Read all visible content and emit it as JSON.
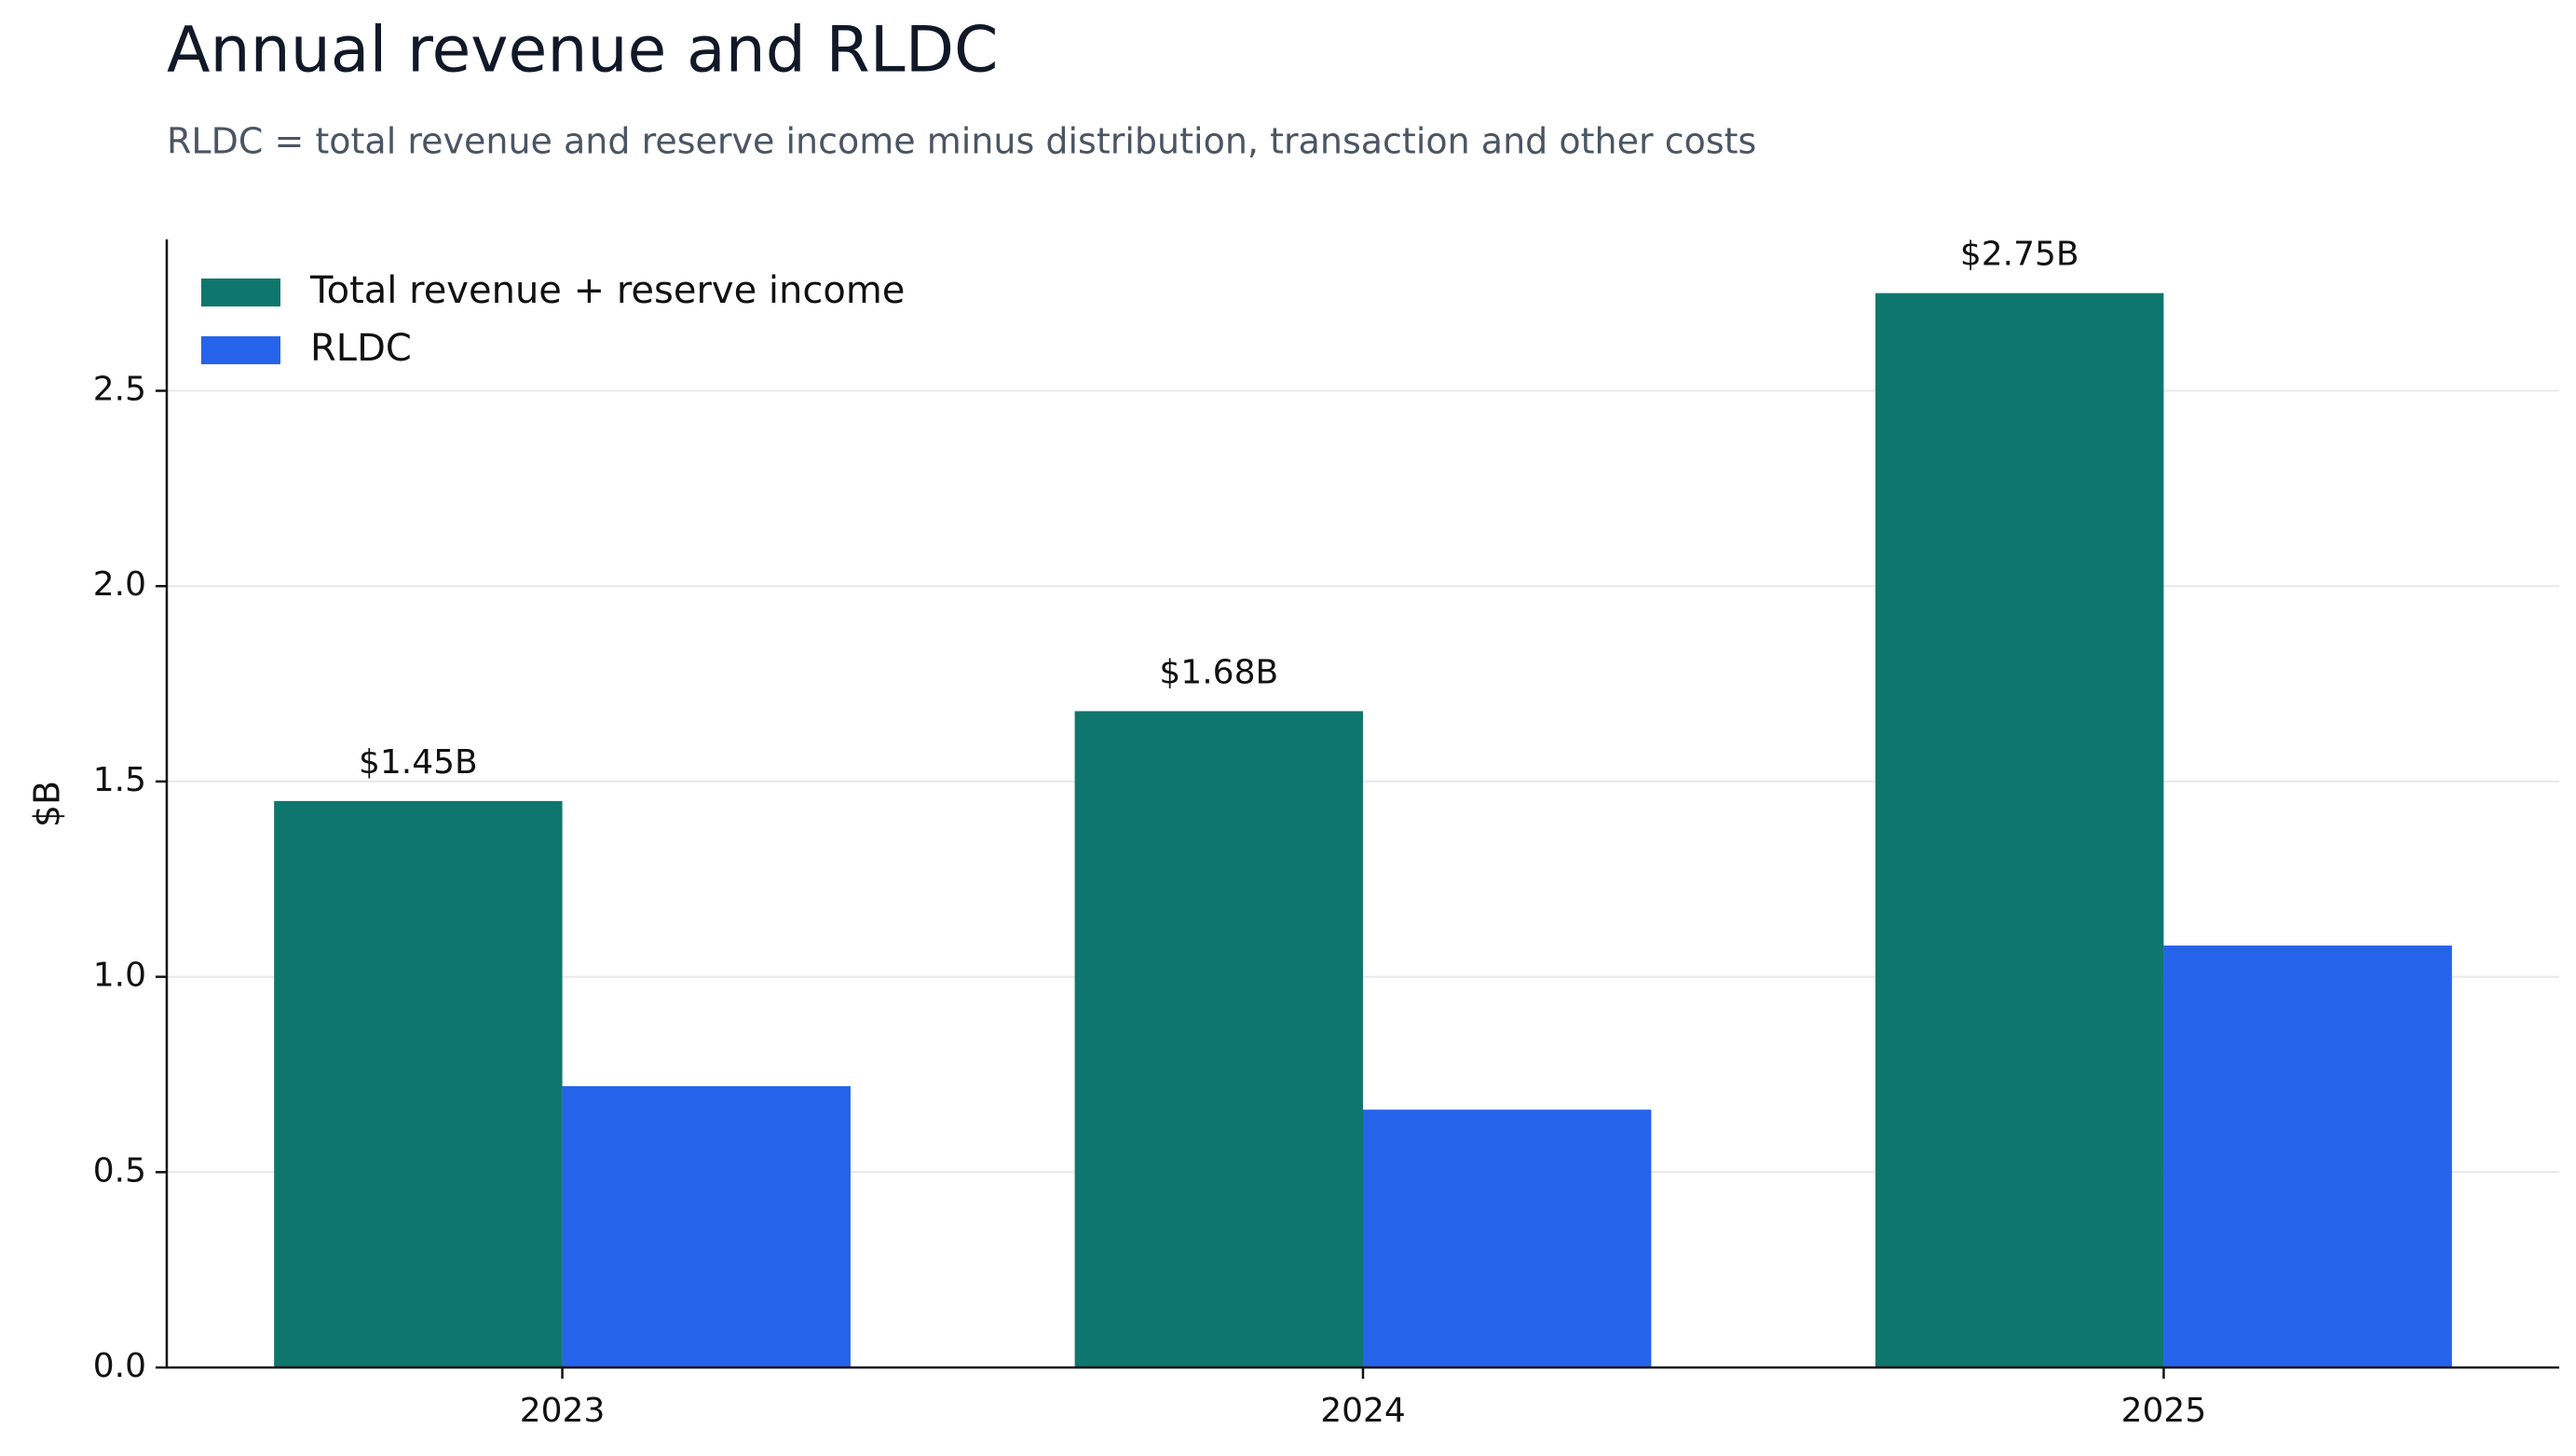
{
  "chart_data": {
    "type": "bar",
    "title": "Annual revenue and RLDC",
    "subtitle": "RLDC = total revenue and reserve income minus distribution, transaction and other costs",
    "y_label": "$B",
    "categories": [
      "2023",
      "2024",
      "2025"
    ],
    "series": [
      {
        "name": "Total revenue + reserve income",
        "color": "#0f766e",
        "values": [
          1.45,
          1.68,
          2.75
        ],
        "value_labels": [
          "$1.45B",
          "$1.68B",
          "$2.75B"
        ]
      },
      {
        "name": "RLDC",
        "color": "#2563eb",
        "values": [
          0.72,
          0.66,
          1.08
        ]
      }
    ],
    "ylim": [
      0,
      2.8875
    ],
    "yticks": [
      {
        "value": 0,
        "label": "0.0"
      },
      0.5,
      {
        "value": 1,
        "label": "1.0"
      },
      1.5,
      {
        "value": 2,
        "label": "2.0"
      },
      2.5
    ],
    "grid": true,
    "legend": "upper-left"
  }
}
